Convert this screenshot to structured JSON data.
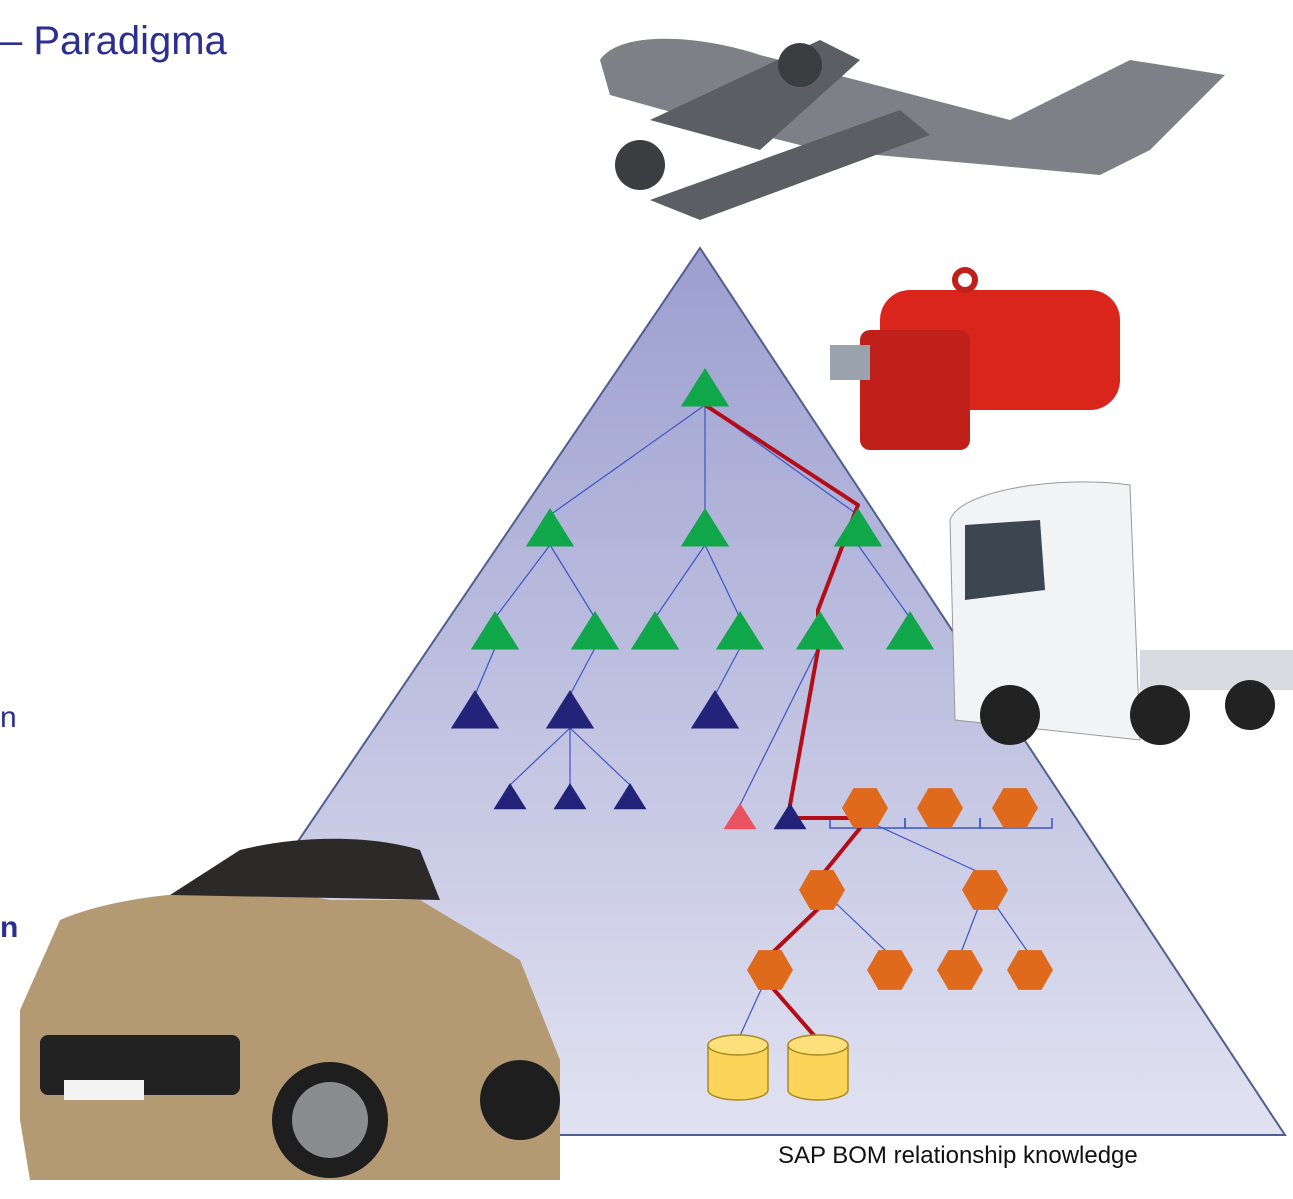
{
  "header": {
    "title": "– Paradigma"
  },
  "left_text": [
    "n",
    "n"
  ],
  "caption": "SAP BOM relationship knowledge"
}
